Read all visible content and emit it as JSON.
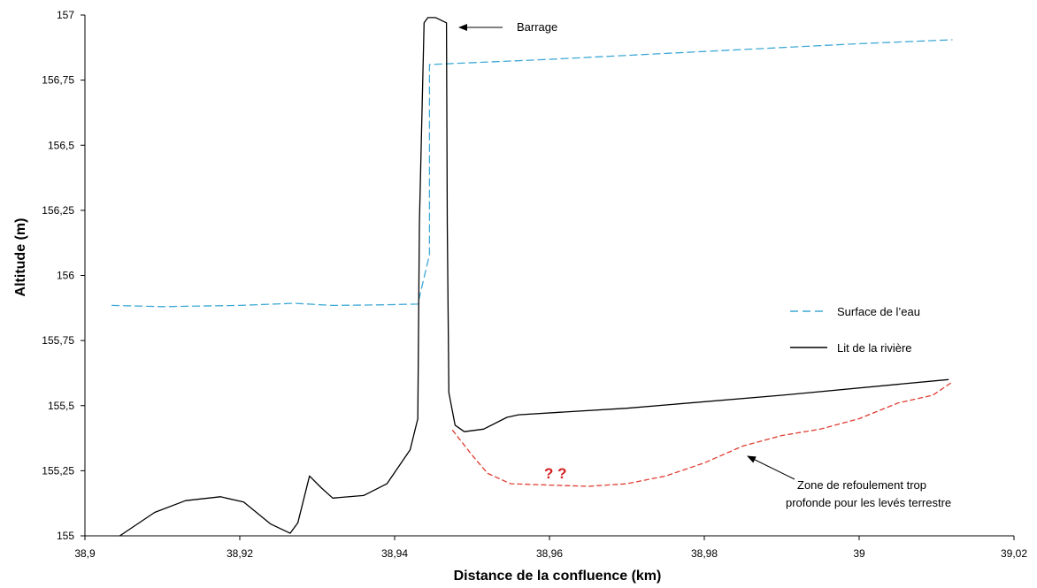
{
  "chart_data": {
    "type": "line",
    "title": "",
    "xlabel": "Distance de la confluence (km)",
    "ylabel": "Altitude (m)",
    "xlim": [
      38.9,
      39.02
    ],
    "ylim": [
      155,
      157
    ],
    "x_ticks": [
      "38,9",
      "38,92",
      "38,94",
      "38,96",
      "38,98",
      "39",
      "39,02"
    ],
    "y_ticks": [
      "155",
      "155,25",
      "155,5",
      "155,75",
      "156",
      "156,25",
      "156,5",
      "156,75",
      "157"
    ],
    "grid": false,
    "legend_position": "right",
    "colors": {
      "water": "#3fa9d6",
      "bed": "#000000",
      "deep_zone": "#e03c31",
      "question": "#d42020"
    },
    "series": [
      {
        "name": "Surface de l’eau",
        "style": "dashed",
        "x": [
          38.9035,
          38.91,
          38.92,
          38.927,
          38.932,
          38.938,
          38.943,
          38.9445,
          38.9445,
          38.96,
          38.98,
          39.0,
          39.012
        ],
        "y": [
          155.885,
          155.88,
          155.885,
          155.893,
          155.885,
          155.887,
          155.89,
          156.08,
          156.81,
          156.83,
          156.86,
          156.89,
          156.905
        ]
      },
      {
        "name": "Lit de la rivière",
        "style": "solid",
        "x": [
          38.9045,
          38.909,
          38.913,
          38.9175,
          38.9205,
          38.924,
          38.9265,
          38.9275,
          38.929,
          38.9305,
          38.932,
          38.936,
          38.939,
          38.942,
          38.943,
          38.9432,
          38.9438,
          38.9443,
          38.9453,
          38.9467,
          38.9468,
          38.947,
          38.9478,
          38.949,
          38.9515,
          38.9545,
          38.956,
          38.97,
          38.99,
          39.0115
        ],
        "y": [
          155.0,
          155.09,
          155.135,
          155.15,
          155.13,
          155.045,
          155.01,
          155.05,
          155.23,
          155.185,
          155.145,
          155.155,
          155.2,
          155.33,
          155.45,
          156.2,
          156.97,
          156.99,
          156.99,
          156.97,
          156.2,
          155.55,
          155.425,
          155.4,
          155.41,
          155.455,
          155.465,
          155.49,
          155.54,
          155.6
        ]
      },
      {
        "name": "",
        "style": "dashed",
        "x": [
          38.9475,
          38.95,
          38.952,
          38.955,
          38.96,
          38.965,
          38.97,
          38.975,
          38.98,
          38.985,
          38.99,
          38.995,
          39.0,
          39.005,
          39.0095,
          39.012
        ],
        "y": [
          155.405,
          155.31,
          155.24,
          155.2,
          155.195,
          155.19,
          155.2,
          155.23,
          155.28,
          155.345,
          155.385,
          155.41,
          155.45,
          155.51,
          155.54,
          155.59
        ]
      }
    ],
    "annotations": {
      "barrage": "Barrage",
      "zone_line1": "Zone de refoulement trop",
      "zone_line2": "profonde pour les levés terrestre",
      "question_marks": "? ?"
    }
  }
}
